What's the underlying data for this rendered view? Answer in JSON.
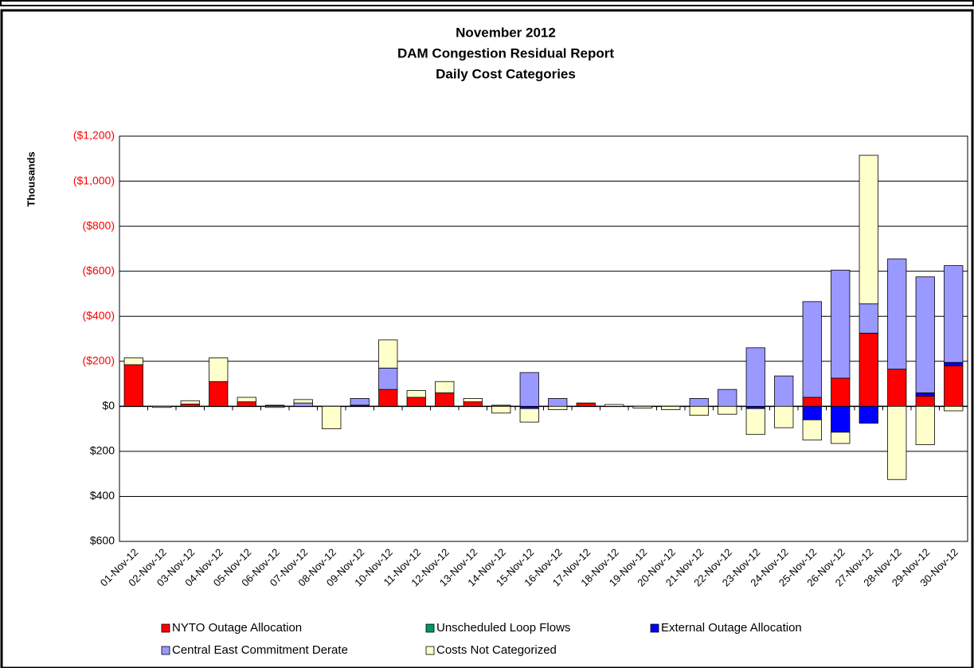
{
  "chart_data": {
    "type": "stacked_bar",
    "title_lines": [
      "November 2012",
      "DAM Congestion Residual Report",
      "Daily Cost Categories"
    ],
    "y_label": "Thousands",
    "categories": [
      "01-Nov-12",
      "02-Nov-12",
      "03-Nov-12",
      "04-Nov-12",
      "05-Nov-12",
      "06-Nov-12",
      "07-Nov-12",
      "08-Nov-12",
      "09-Nov-12",
      "10-Nov-12",
      "11-Nov-12",
      "12-Nov-12",
      "13-Nov-12",
      "14-Nov-12",
      "15-Nov-12",
      "16-Nov-12",
      "17-Nov-12",
      "18-Nov-12",
      "19-Nov-12",
      "20-Nov-12",
      "21-Nov-12",
      "22-Nov-12",
      "23-Nov-12",
      "24-Nov-12",
      "25-Nov-12",
      "26-Nov-12",
      "27-Nov-12",
      "28-Nov-12",
      "29-Nov-12",
      "30-Nov-12"
    ],
    "series": [
      {
        "name": "NYTO  Outage Allocation",
        "color": "#ff0000",
        "values": [
          -185,
          0,
          -10,
          -110,
          -20,
          0,
          0,
          0,
          0,
          -75,
          -40,
          -60,
          -20,
          -5,
          0,
          0,
          -15,
          0,
          0,
          0,
          0,
          0,
          0,
          0,
          -40,
          -125,
          -325,
          -165,
          -45,
          -180
        ]
      },
      {
        "name": "Unscheduled Loop Flows",
        "color": "#009966",
        "values": [
          0,
          0,
          0,
          0,
          0,
          0,
          0,
          0,
          0,
          0,
          0,
          0,
          0,
          0,
          0,
          0,
          0,
          0,
          0,
          0,
          0,
          0,
          0,
          0,
          0,
          0,
          0,
          0,
          0,
          0
        ]
      },
      {
        "name": "External Outage Allocation",
        "color": "#0000ff",
        "values": [
          0,
          0,
          0,
          0,
          0,
          -5,
          0,
          0,
          -5,
          0,
          0,
          0,
          0,
          0,
          10,
          0,
          0,
          0,
          0,
          0,
          0,
          0,
          10,
          0,
          60,
          115,
          75,
          0,
          -15,
          -15
        ]
      },
      {
        "name": "Central East Commitment Derate",
        "color": "#9999ff",
        "values": [
          0,
          0,
          0,
          0,
          0,
          0,
          -15,
          0,
          -30,
          -95,
          0,
          0,
          0,
          0,
          -150,
          -35,
          0,
          0,
          0,
          0,
          -35,
          -75,
          -260,
          -135,
          -425,
          -480,
          -130,
          -490,
          -515,
          -430
        ]
      },
      {
        "name": "Costs Not Categorized",
        "color": "#ffffcc",
        "values": [
          -30,
          5,
          -15,
          -105,
          -20,
          5,
          -15,
          100,
          0,
          -125,
          -30,
          -50,
          -15,
          30,
          60,
          15,
          0,
          -8,
          8,
          15,
          40,
          35,
          115,
          95,
          90,
          50,
          -660,
          325,
          170,
          20
        ]
      }
    ],
    "ylim": [
      600,
      -1200
    ],
    "yticks": [
      {
        "value": -1200,
        "label": "($1,200)"
      },
      {
        "value": -1000,
        "label": "($1,000)"
      },
      {
        "value": -800,
        "label": "($800)"
      },
      {
        "value": -600,
        "label": "($600)"
      },
      {
        "value": -400,
        "label": "($400)"
      },
      {
        "value": -200,
        "label": "($200)"
      },
      {
        "value": 0,
        "label": "$0"
      },
      {
        "value": 200,
        "label": "$200"
      },
      {
        "value": 400,
        "label": "$400"
      },
      {
        "value": 600,
        "label": "$600"
      }
    ],
    "negative_tick_color": "#ff0000",
    "grid": true,
    "legend": "bottom"
  }
}
